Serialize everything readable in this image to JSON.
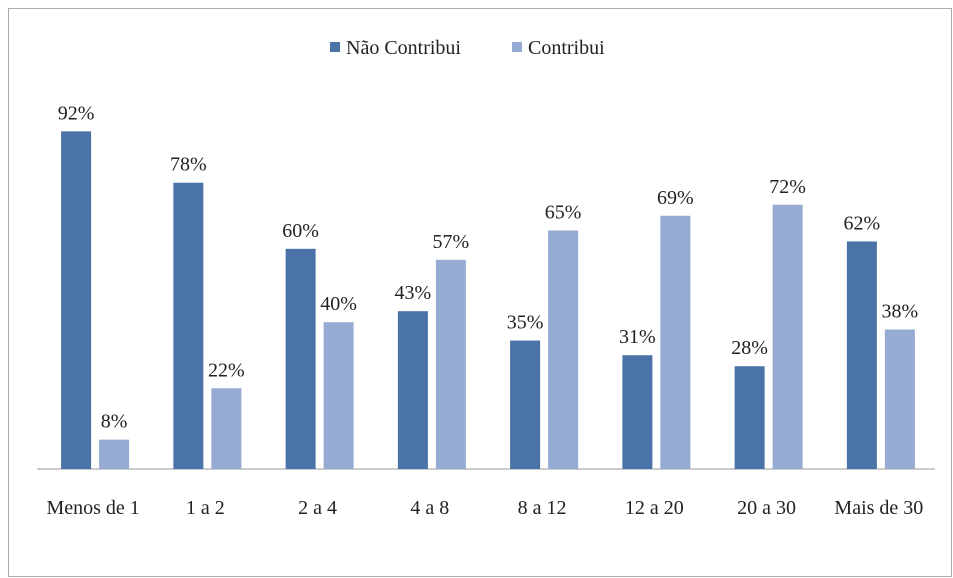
{
  "chart_data": {
    "type": "bar",
    "categories": [
      "Menos de 1",
      "1 a 2",
      "2 a 4",
      "4 a 8",
      "8 a 12",
      "12 a 20",
      "20 a 30",
      "Mais de 30"
    ],
    "series": [
      {
        "name": "Não Contribui",
        "color": "#4a73a8",
        "values": [
          92,
          78,
          60,
          43,
          35,
          31,
          28,
          62
        ],
        "value_labels": [
          "92%",
          "78%",
          "60%",
          "43%",
          "35%",
          "31%",
          "28%",
          "62%"
        ]
      },
      {
        "name": "Contribui",
        "color": "#95abd4",
        "values": [
          8,
          22,
          40,
          57,
          65,
          69,
          72,
          38
        ],
        "value_labels": [
          "8%",
          "22%",
          "40%",
          "57%",
          "65%",
          "69%",
          "72%",
          "38%"
        ]
      }
    ],
    "legend": "top"
  }
}
